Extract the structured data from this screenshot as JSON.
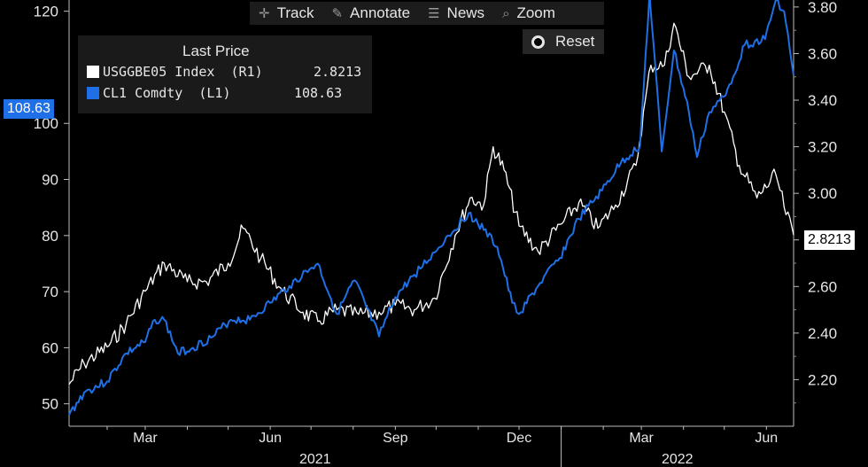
{
  "toolbar": {
    "track": {
      "label": "Track",
      "icon": "crosshair-icon"
    },
    "annotate": {
      "label": "Annotate",
      "icon": "pencil-icon"
    },
    "news": {
      "label": "News",
      "icon": "news-icon"
    },
    "zoom": {
      "label": "Zoom",
      "icon": "magnifier-icon"
    },
    "reset": {
      "label": "Reset",
      "icon": "radio-icon"
    }
  },
  "legend": {
    "title": "Last Price",
    "items": [
      {
        "name": "USGGBE05 Index  (R1)",
        "value": "2.8213",
        "color": "#ffffff"
      },
      {
        "name": "CL1 Comdty  (L1)",
        "value": "108.63",
        "color": "#1f6fe6"
      }
    ]
  },
  "last_value_tags": {
    "left": {
      "text": "108.63",
      "color": "#1f6fe6"
    },
    "right": {
      "text": "2.8213",
      "color": "#ffffff"
    }
  },
  "chart_data": {
    "type": "line",
    "x_axis": {
      "ticks": [
        "Mar",
        "Jun",
        "Sep",
        "Dec",
        "Mar",
        "Jun"
      ],
      "tick_dates": [
        "2021-03-01",
        "2021-06-01",
        "2021-09-01",
        "2021-12-01",
        "2022-03-01",
        "2022-06-01"
      ],
      "years": [
        "2021",
        "2022"
      ],
      "range": [
        "2021-01-04",
        "2022-06-21"
      ]
    },
    "left_axis": {
      "ticks": [
        50,
        60,
        70,
        80,
        90,
        100,
        120
      ],
      "range": [
        46,
        122
      ]
    },
    "right_axis": {
      "ticks": [
        "2.20",
        "2.40",
        "2.60",
        "2.80",
        "3.00",
        "3.20",
        "3.40",
        "3.60",
        "3.80"
      ],
      "range": [
        2.0,
        3.83
      ]
    },
    "grid": false,
    "series": [
      {
        "name": "CL1 Comdty  (L1)",
        "axis": "left",
        "color": "#1f6fe6",
        "points": [
          [
            "2021-01-04",
            48
          ],
          [
            "2021-01-15",
            52
          ],
          [
            "2021-02-01",
            54
          ],
          [
            "2021-02-15",
            59
          ],
          [
            "2021-03-01",
            61
          ],
          [
            "2021-03-08",
            65
          ],
          [
            "2021-03-15",
            65
          ],
          [
            "2021-03-25",
            59
          ],
          [
            "2021-04-05",
            60
          ],
          [
            "2021-04-20",
            62
          ],
          [
            "2021-05-03",
            65
          ],
          [
            "2021-05-17",
            65
          ],
          [
            "2021-06-01",
            68
          ],
          [
            "2021-06-15",
            71
          ],
          [
            "2021-06-30",
            74
          ],
          [
            "2021-07-06",
            75
          ],
          [
            "2021-07-20",
            66
          ],
          [
            "2021-08-02",
            72
          ],
          [
            "2021-08-20",
            62
          ],
          [
            "2021-09-01",
            69
          ],
          [
            "2021-09-15",
            73
          ],
          [
            "2021-09-30",
            77
          ],
          [
            "2021-10-10",
            80
          ],
          [
            "2021-10-25",
            84
          ],
          [
            "2021-11-05",
            81
          ],
          [
            "2021-11-15",
            78
          ],
          [
            "2021-11-26",
            68
          ],
          [
            "2021-12-01",
            66
          ],
          [
            "2021-12-15",
            71
          ],
          [
            "2021-12-31",
            76
          ],
          [
            "2022-01-14",
            83
          ],
          [
            "2022-01-31",
            88
          ],
          [
            "2022-02-14",
            93
          ],
          [
            "2022-02-28",
            96
          ],
          [
            "2022-03-07",
            123
          ],
          [
            "2022-03-16",
            95
          ],
          [
            "2022-03-25",
            113
          ],
          [
            "2022-04-05",
            102
          ],
          [
            "2022-04-11",
            94
          ],
          [
            "2022-04-20",
            102
          ],
          [
            "2022-05-02",
            105
          ],
          [
            "2022-05-16",
            114
          ],
          [
            "2022-05-31",
            115
          ],
          [
            "2022-06-08",
            122
          ],
          [
            "2022-06-14",
            120
          ],
          [
            "2022-06-21",
            108.63
          ]
        ]
      },
      {
        "name": "USGGBE05 Index  (R1)",
        "axis": "right",
        "color": "#ffffff",
        "points": [
          [
            "2021-01-04",
            2.18
          ],
          [
            "2021-01-15",
            2.27
          ],
          [
            "2021-02-01",
            2.34
          ],
          [
            "2021-02-15",
            2.44
          ],
          [
            "2021-03-01",
            2.58
          ],
          [
            "2021-03-15",
            2.7
          ],
          [
            "2021-04-01",
            2.62
          ],
          [
            "2021-04-15",
            2.62
          ],
          [
            "2021-05-01",
            2.7
          ],
          [
            "2021-05-12",
            2.85
          ],
          [
            "2021-05-25",
            2.72
          ],
          [
            "2021-06-10",
            2.58
          ],
          [
            "2021-06-25",
            2.49
          ],
          [
            "2021-07-06",
            2.45
          ],
          [
            "2021-07-20",
            2.5
          ],
          [
            "2021-08-05",
            2.48
          ],
          [
            "2021-08-20",
            2.49
          ],
          [
            "2021-09-01",
            2.52
          ],
          [
            "2021-09-15",
            2.5
          ],
          [
            "2021-09-30",
            2.55
          ],
          [
            "2021-10-15",
            2.82
          ],
          [
            "2021-10-26",
            2.98
          ],
          [
            "2021-11-05",
            2.95
          ],
          [
            "2021-11-12",
            3.2
          ],
          [
            "2021-11-20",
            3.1
          ],
          [
            "2021-12-01",
            2.86
          ],
          [
            "2021-12-15",
            2.75
          ],
          [
            "2022-01-03",
            2.88
          ],
          [
            "2022-01-14",
            2.96
          ],
          [
            "2022-01-28",
            2.85
          ],
          [
            "2022-02-10",
            2.95
          ],
          [
            "2022-02-25",
            3.12
          ],
          [
            "2022-03-08",
            3.55
          ],
          [
            "2022-03-18",
            3.55
          ],
          [
            "2022-03-25",
            3.73
          ],
          [
            "2022-04-05",
            3.5
          ],
          [
            "2022-04-20",
            3.55
          ],
          [
            "2022-05-01",
            3.35
          ],
          [
            "2022-05-12",
            3.12
          ],
          [
            "2022-05-25",
            2.98
          ],
          [
            "2022-06-08",
            3.08
          ],
          [
            "2022-06-14",
            2.94
          ],
          [
            "2022-06-21",
            2.8213
          ]
        ]
      }
    ]
  }
}
